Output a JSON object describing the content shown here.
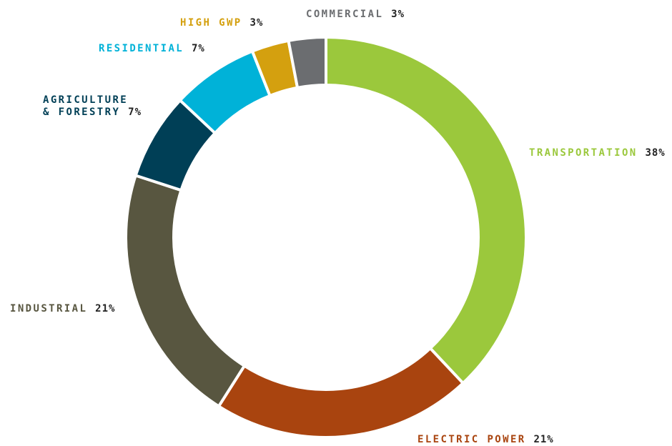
{
  "chart_data": {
    "type": "donut",
    "categories": [
      "TRANSPORTATION",
      "ELECTRIC POWER",
      "INDUSTRIAL",
      "AGRICULTURE\n& FORESTRY",
      "RESIDENTIAL",
      "HIGH GWP",
      "COMMERCIAL"
    ],
    "values": [
      38,
      21,
      21,
      7,
      7,
      3,
      3
    ],
    "value_labels": [
      "38%",
      "21%",
      "21%",
      "7%",
      "7%",
      "3%",
      "3%"
    ],
    "colors": [
      "#9bc83c",
      "#a9440f",
      "#585640",
      "#003f56",
      "#00b2d8",
      "#d4a00f",
      "#6b6d70"
    ]
  }
}
